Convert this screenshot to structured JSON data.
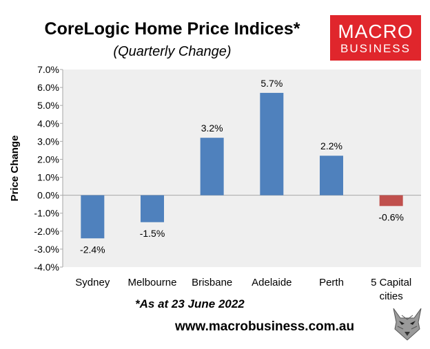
{
  "header": {
    "title": "CoreLogic Home Price Indices*",
    "subtitle": "(Quarterly Change)"
  },
  "logo": {
    "line1": "MACRO",
    "line2": "BUSINESS"
  },
  "footer": {
    "footnote": "*As at 23 June 2022",
    "url": "www.macrobusiness.com.au"
  },
  "colors": {
    "positive": "#4f81bd",
    "negative": "#c0504d",
    "plot_bg": "#efefef",
    "brand": "#e0262c"
  },
  "chart_data": {
    "type": "bar",
    "title": "CoreLogic Home Price Indices*",
    "subtitle": "(Quarterly Change)",
    "ylabel": "Price Change",
    "xlabel": "",
    "categories": [
      "Sydney",
      "Melbourne",
      "Brisbane",
      "Adelaide",
      "Perth",
      "5 Capital cities"
    ],
    "values": [
      -2.4,
      -1.5,
      3.2,
      5.7,
      2.2,
      -0.6
    ],
    "data_labels": [
      "-2.4%",
      "-1.5%",
      "3.2%",
      "5.7%",
      "2.2%",
      "-0.6%"
    ],
    "ylim": [
      -4.0,
      7.0
    ],
    "yticks": [
      7.0,
      6.0,
      5.0,
      4.0,
      3.0,
      2.0,
      1.0,
      0.0,
      -1.0,
      -2.0,
      -3.0,
      -4.0
    ],
    "ytick_labels": [
      "7.0%",
      "6.0%",
      "5.0%",
      "4.0%",
      "3.0%",
      "2.0%",
      "1.0%",
      "0.0%",
      "-1.0%",
      "-2.0%",
      "-3.0%",
      "-4.0%"
    ],
    "grid": false,
    "legend": "none"
  }
}
